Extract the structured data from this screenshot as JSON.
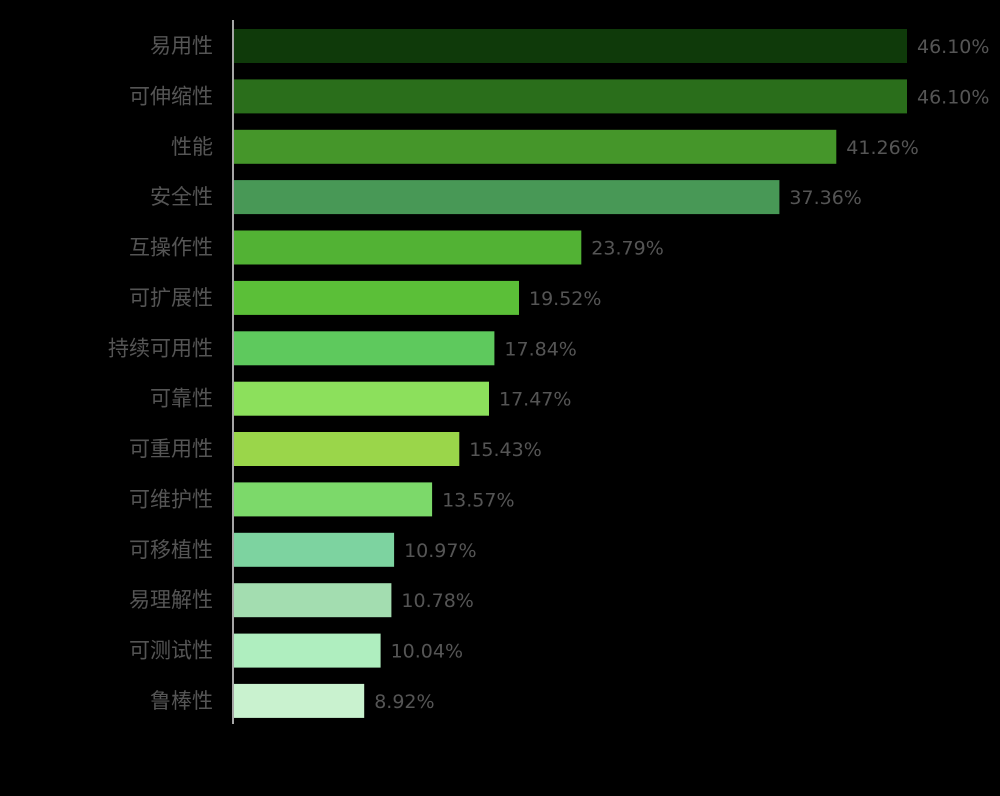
{
  "chart_data": {
    "type": "bar",
    "orientation": "horizontal",
    "categories": [
      "易用性",
      "可伸缩性",
      "性能",
      "安全性",
      "互操作性",
      "可扩展性",
      "持续可用性",
      "可靠性",
      "可重用性",
      "可维护性",
      "可移植性",
      "易理解性",
      "可测试性",
      "鲁棒性"
    ],
    "values": [
      46.1,
      46.1,
      41.26,
      37.36,
      23.79,
      19.52,
      17.84,
      17.47,
      15.43,
      13.57,
      10.97,
      10.78,
      10.04,
      8.92
    ],
    "value_labels": [
      "46.10%",
      "46.10%",
      "41.26%",
      "37.36%",
      "23.79%",
      "19.52%",
      "17.84%",
      "17.47%",
      "15.43%",
      "13.57%",
      "10.97%",
      "10.78%",
      "10.04%",
      "8.92%"
    ],
    "colors": [
      "#0f3a0a",
      "#2a6e1b",
      "#45962a",
      "#489856",
      "#52b234",
      "#5bbf38",
      "#5ec95d",
      "#8ce05c",
      "#9ad64a",
      "#7cd96a",
      "#7dd3a0",
      "#a3ddb0",
      "#afeebf",
      "#c9f2cf"
    ],
    "title": "",
    "xlabel": "",
    "ylabel": "",
    "xlim": [
      0,
      46.1
    ],
    "grid": false,
    "legend": "none",
    "background": "#000000",
    "text_color": "#555555",
    "axis_color": "#dddddd"
  }
}
